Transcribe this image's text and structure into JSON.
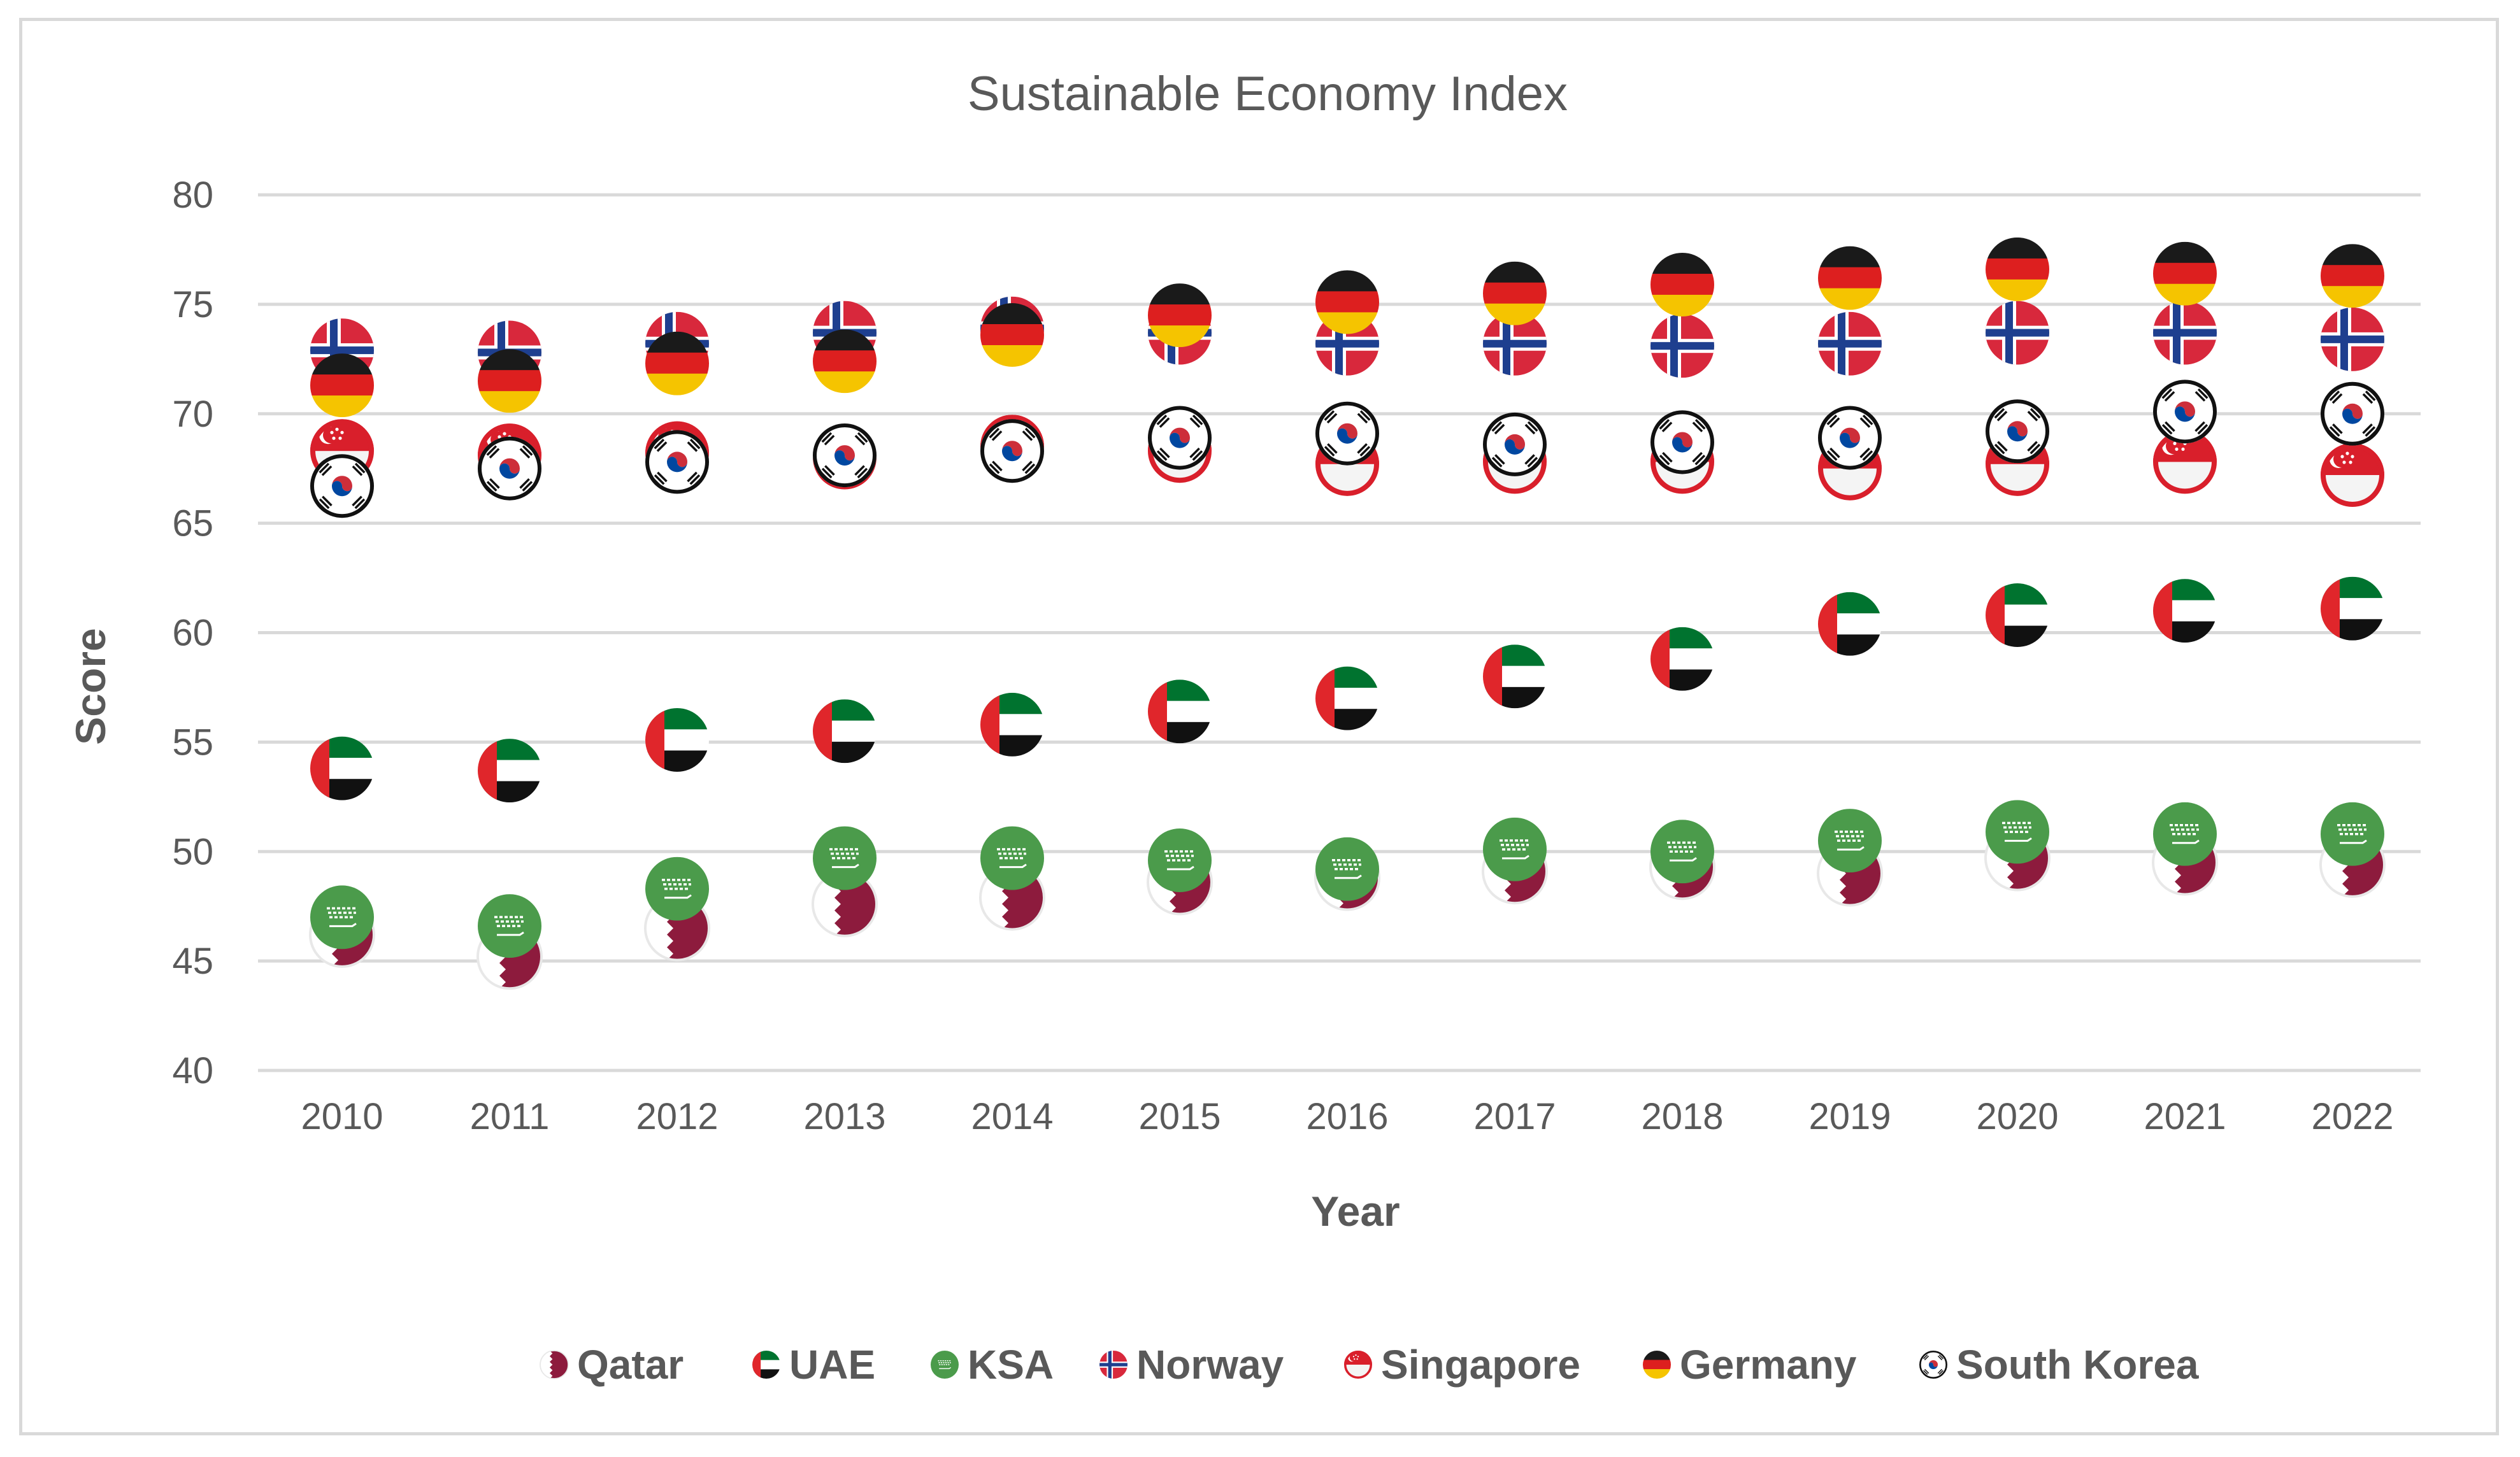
{
  "chart_data": {
    "type": "scatter",
    "title": "Sustainable Economy Index",
    "xlabel": "Year",
    "ylabel": "Score",
    "ylim": [
      40,
      80
    ],
    "yticks": [
      "40",
      "45",
      "50",
      "55",
      "60",
      "65",
      "70",
      "75",
      "80"
    ],
    "categories": [
      "2010",
      "2011",
      "2012",
      "2013",
      "2014",
      "2015",
      "2016",
      "2017",
      "2018",
      "2019",
      "2020",
      "2021",
      "2022"
    ],
    "grid": true,
    "legend_position": "bottom",
    "series": [
      {
        "name": "Qatar",
        "flag": "qatar",
        "values": [
          46.2,
          45.2,
          46.5,
          47.6,
          47.9,
          48.6,
          48.8,
          49.1,
          49.3,
          49.0,
          49.7,
          49.5,
          49.4
        ]
      },
      {
        "name": "UAE",
        "flag": "uae",
        "values": [
          53.8,
          53.7,
          55.1,
          55.5,
          55.8,
          56.4,
          57.0,
          58.0,
          58.8,
          60.4,
          60.8,
          61.0,
          61.1
        ]
      },
      {
        "name": "KSA",
        "flag": "ksa",
        "values": [
          47.0,
          46.6,
          48.3,
          49.7,
          49.7,
          49.6,
          49.2,
          50.1,
          50.0,
          50.5,
          50.9,
          50.8,
          50.8
        ]
      },
      {
        "name": "Norway",
        "flag": "norway",
        "values": [
          72.9,
          72.8,
          73.2,
          73.7,
          73.9,
          73.7,
          73.2,
          73.2,
          73.1,
          73.2,
          73.7,
          73.7,
          73.4
        ]
      },
      {
        "name": "Singapore",
        "flag": "singapore",
        "values": [
          68.3,
          68.1,
          68.2,
          68.0,
          68.5,
          68.3,
          67.7,
          67.8,
          67.8,
          67.5,
          67.7,
          67.8,
          67.2
        ]
      },
      {
        "name": "Germany",
        "flag": "germany",
        "values": [
          71.3,
          71.5,
          72.3,
          72.4,
          73.6,
          74.5,
          75.1,
          75.5,
          75.9,
          76.2,
          76.6,
          76.4,
          76.3
        ]
      },
      {
        "name": "South Korea",
        "flag": "southkorea",
        "values": [
          66.7,
          67.5,
          67.8,
          68.1,
          68.3,
          68.9,
          69.1,
          68.6,
          68.7,
          68.9,
          69.2,
          70.1,
          70.0
        ]
      }
    ],
    "colors": {
      "grid": "#d9d9d9",
      "text": "#595959",
      "frame": "#d9d9d9",
      "qatar_maroon": "#8d1b3d",
      "uae_green": "#00732f",
      "ksa_green": "#4b9b4b",
      "norway_red": "#d8283c",
      "norway_blue": "#1e3f8f",
      "singapore_red": "#d91f2b",
      "germany_black": "#1a1a1a",
      "germany_red": "#dd1f1f",
      "germany_gold": "#f5c400",
      "korea_red": "#cd2e3a",
      "korea_blue": "#0047a0"
    }
  }
}
